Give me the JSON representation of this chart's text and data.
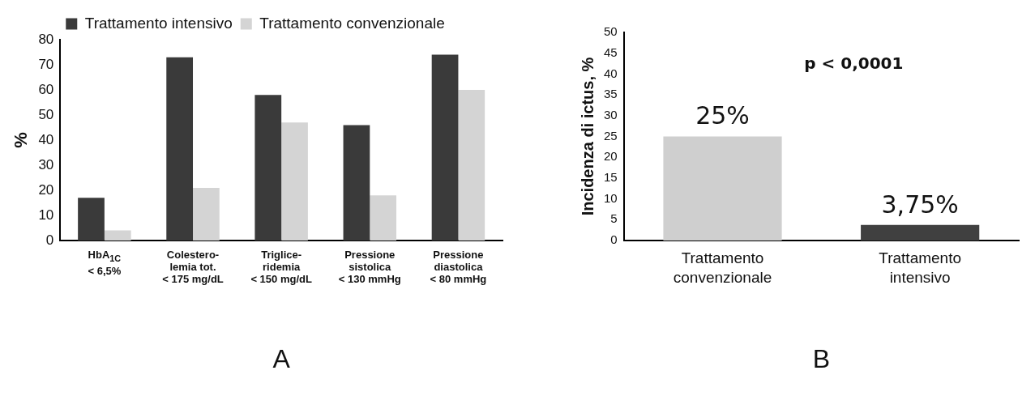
{
  "chart_data": [
    {
      "type": "bar",
      "title": "A",
      "ylabel": "%",
      "categories": [
        "HbA$_{1C}$\n< 6,5%",
        "Colestero-\nlemia tot.\n< 175 mg/dL",
        "Triglice-\nridemia\n< 150 mg/dL",
        "Pressione\nsistolica\n< 130 mmHg",
        "Pressione\ndiastolica\n< 80 mmHg"
      ],
      "series": [
        {
          "name": "Trattamento intensivo",
          "color": "#3a3a3a",
          "values": [
            17,
            73,
            58,
            46,
            74
          ]
        },
        {
          "name": "Trattamento convenzionale",
          "color": "#d4d4d4",
          "values": [
            4,
            21,
            47,
            18,
            60
          ]
        }
      ],
      "ylim": [
        0,
        80
      ],
      "yticks": [
        0,
        10,
        20,
        30,
        40,
        50,
        60,
        70,
        80
      ],
      "grid": false,
      "legend": "top"
    },
    {
      "type": "bar",
      "title": "B",
      "ylabel": "Incidenza di ictus, %",
      "categories": [
        "Trattamento\nconvenzionale",
        "Trattamento\nintensivo"
      ],
      "values": [
        25,
        3.75
      ],
      "colors": [
        "#cfcfcf",
        "#404040"
      ],
      "value_labels": [
        "25%",
        "3,75%"
      ],
      "annotations": [
        "p < 0,0001"
      ],
      "ylim": [
        0,
        50
      ],
      "yticks": [
        0,
        5,
        10,
        15,
        20,
        25,
        30,
        35,
        40,
        45,
        50
      ],
      "grid": false,
      "legend": false
    }
  ]
}
